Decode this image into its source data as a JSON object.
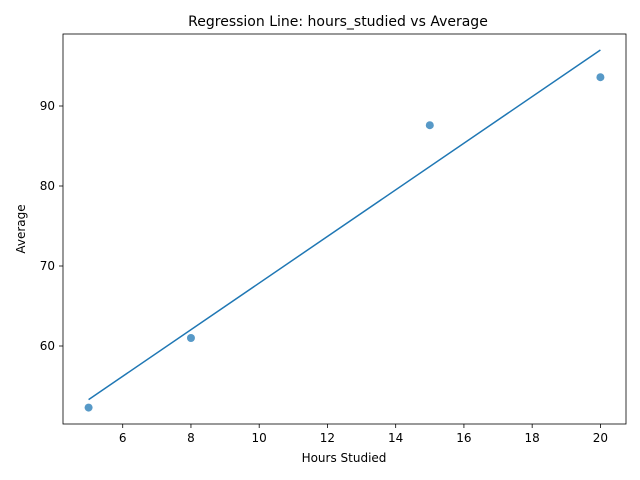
{
  "chart_data": {
    "type": "scatter",
    "title": "Regression Line: hours_studied vs Average",
    "xlabel": "Hours Studied",
    "ylabel": "Average",
    "xlim": [
      4.25,
      20.75
    ],
    "ylim": [
      50.25,
      99.0
    ],
    "x_ticks": [
      6,
      8,
      10,
      12,
      14,
      16,
      18,
      20
    ],
    "y_ticks": [
      60,
      70,
      80,
      90
    ],
    "grid": false,
    "points": [
      {
        "x": 5,
        "y": 52.3
      },
      {
        "x": 8,
        "y": 61.0
      },
      {
        "x": 15,
        "y": 87.6
      },
      {
        "x": 20,
        "y": 93.6
      }
    ],
    "regression_line": {
      "x": [
        5,
        20
      ],
      "y": [
        53.3,
        97.0
      ]
    },
    "colors": {
      "point": "#1f77b4",
      "line": "#1f77b4"
    }
  }
}
